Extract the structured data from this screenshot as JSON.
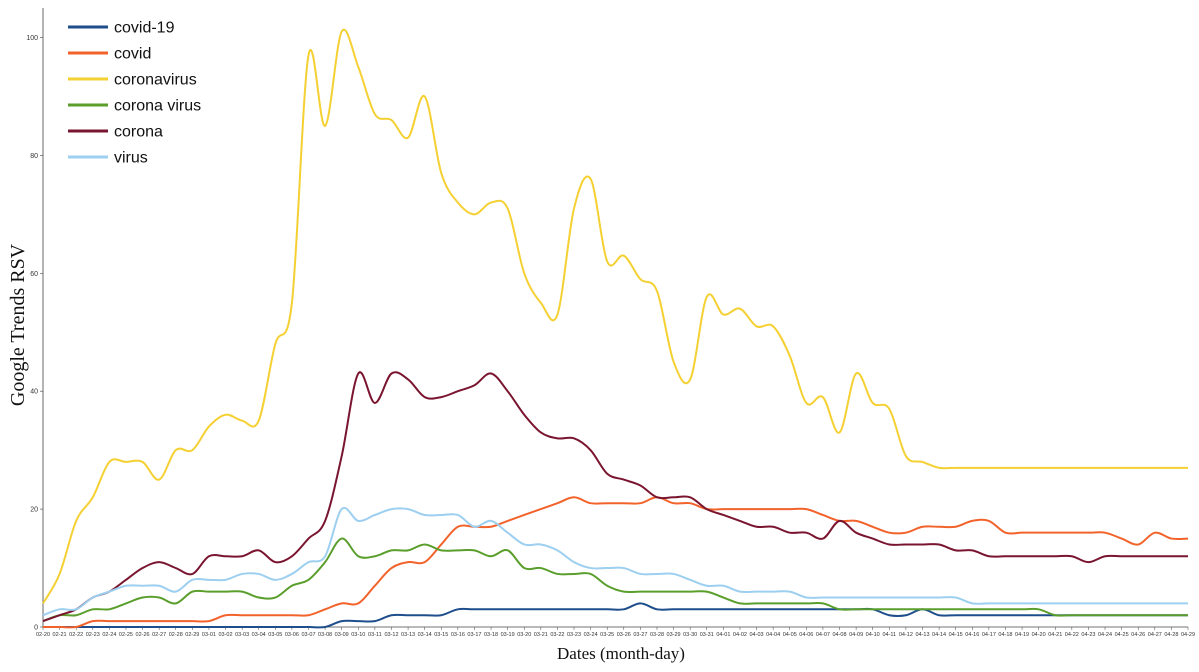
{
  "chart_data": {
    "type": "line",
    "xlabel": "Dates (month-day)",
    "ylabel": "Google Trends RSV",
    "ylim": [
      0,
      105
    ],
    "yticks": [
      0,
      20,
      40,
      60,
      80,
      100
    ],
    "grid": false,
    "legend_position": "top-left",
    "x": [
      "02-20",
      "02-21",
      "02-22",
      "02-23",
      "02-24",
      "02-25",
      "02-26",
      "02-27",
      "02-28",
      "02-29",
      "03-01",
      "03-02",
      "03-03",
      "03-04",
      "03-05",
      "03-06",
      "03-07",
      "03-08",
      "03-09",
      "03-10",
      "03-11",
      "03-12",
      "03-13",
      "03-14",
      "03-15",
      "03-16",
      "03-17",
      "03-18",
      "03-19",
      "03-20",
      "03-21",
      "03-22",
      "03-23",
      "03-24",
      "03-25",
      "03-26",
      "03-27",
      "03-28",
      "03-29",
      "03-30",
      "03-31",
      "04-01",
      "04-02",
      "04-03",
      "04-04",
      "04-05",
      "04-06",
      "04-07",
      "04-08",
      "04-09",
      "04-10",
      "04-11",
      "04-12",
      "04-13",
      "04-14",
      "04-15",
      "04-16",
      "04-17",
      "04-18",
      "04-19",
      "04-20",
      "04-21",
      "04-22",
      "04-23",
      "04-24",
      "04-25",
      "04-26",
      "04-27",
      "04-28",
      "04-29"
    ],
    "series": [
      {
        "name": "covid-19",
        "color": "#1f4e8c",
        "values": [
          0,
          0,
          0,
          0,
          0,
          0,
          0,
          0,
          0,
          0,
          0,
          0,
          0,
          0,
          0,
          0,
          0,
          0,
          1,
          1,
          1,
          2,
          2,
          2,
          2,
          3,
          3,
          3,
          3,
          3,
          3,
          3,
          3,
          3,
          3,
          3,
          4,
          3,
          3,
          3,
          3,
          3,
          3,
          3,
          3,
          3,
          3,
          3,
          3,
          3,
          3,
          2,
          2,
          3,
          2,
          2,
          2,
          2,
          2,
          2,
          2,
          2,
          2,
          2,
          2,
          2,
          2,
          2,
          2,
          2
        ]
      },
      {
        "name": "covid",
        "color": "#f2632b",
        "values": [
          0,
          0,
          0,
          1,
          1,
          1,
          1,
          1,
          1,
          1,
          1,
          2,
          2,
          2,
          2,
          2,
          2,
          3,
          4,
          4,
          7,
          10,
          11,
          11,
          14,
          17,
          17,
          17,
          18,
          19,
          20,
          21,
          22,
          21,
          21,
          21,
          21,
          22,
          21,
          21,
          20,
          20,
          20,
          20,
          20,
          20,
          20,
          19,
          18,
          18,
          17,
          16,
          16,
          17,
          17,
          17,
          18,
          18,
          16,
          16,
          16,
          16,
          16,
          16,
          16,
          15,
          14,
          16,
          15,
          15
        ]
      },
      {
        "name": "coronavirus",
        "color": "#f5d033",
        "values": [
          4,
          9,
          18,
          22,
          28,
          28,
          28,
          25,
          30,
          30,
          34,
          36,
          35,
          35,
          48,
          55,
          97,
          85,
          101,
          95,
          87,
          86,
          83,
          90,
          77,
          72,
          70,
          72,
          71,
          60,
          55,
          53,
          71,
          76,
          62,
          63,
          59,
          57,
          45,
          42,
          56,
          53,
          54,
          51,
          51,
          46,
          38,
          39,
          33,
          43,
          38,
          37,
          29,
          28,
          27,
          27,
          27,
          27,
          27,
          27,
          27,
          27,
          27,
          27,
          27,
          27,
          27,
          27,
          27,
          27
        ]
      },
      {
        "name": "corona virus",
        "color": "#5a9e2c",
        "values": [
          1,
          2,
          2,
          3,
          3,
          4,
          5,
          5,
          4,
          6,
          6,
          6,
          6,
          5,
          5,
          7,
          8,
          11,
          15,
          12,
          12,
          13,
          13,
          14,
          13,
          13,
          13,
          12,
          13,
          10,
          10,
          9,
          9,
          9,
          7,
          6,
          6,
          6,
          6,
          6,
          6,
          5,
          4,
          4,
          4,
          4,
          4,
          4,
          3,
          3,
          3,
          3,
          3,
          3,
          3,
          3,
          3,
          3,
          3,
          3,
          3,
          2,
          2,
          2,
          2,
          2,
          2,
          2,
          2,
          2
        ]
      },
      {
        "name": "corona",
        "color": "#7a1530",
        "values": [
          1,
          2,
          3,
          5,
          6,
          8,
          10,
          11,
          10,
          9,
          12,
          12,
          12,
          13,
          11,
          12,
          15,
          18,
          29,
          43,
          38,
          43,
          42,
          39,
          39,
          40,
          41,
          43,
          40,
          36,
          33,
          32,
          32,
          30,
          26,
          25,
          24,
          22,
          22,
          22,
          20,
          19,
          18,
          17,
          17,
          16,
          16,
          15,
          18,
          16,
          15,
          14,
          14,
          14,
          14,
          13,
          13,
          12,
          12,
          12,
          12,
          12,
          12,
          11,
          12,
          12,
          12,
          12,
          12,
          12
        ]
      },
      {
        "name": "virus",
        "color": "#9ccff0",
        "values": [
          2,
          3,
          3,
          5,
          6,
          7,
          7,
          7,
          6,
          8,
          8,
          8,
          9,
          9,
          8,
          9,
          11,
          12,
          20,
          18,
          19,
          20,
          20,
          19,
          19,
          19,
          17,
          18,
          16,
          14,
          14,
          13,
          11,
          10,
          10,
          10,
          9,
          9,
          9,
          8,
          7,
          7,
          6,
          6,
          6,
          6,
          5,
          5,
          5,
          5,
          5,
          5,
          5,
          5,
          5,
          5,
          4,
          4,
          4,
          4,
          4,
          4,
          4,
          4,
          4,
          4,
          4,
          4,
          4,
          4
        ]
      }
    ]
  }
}
